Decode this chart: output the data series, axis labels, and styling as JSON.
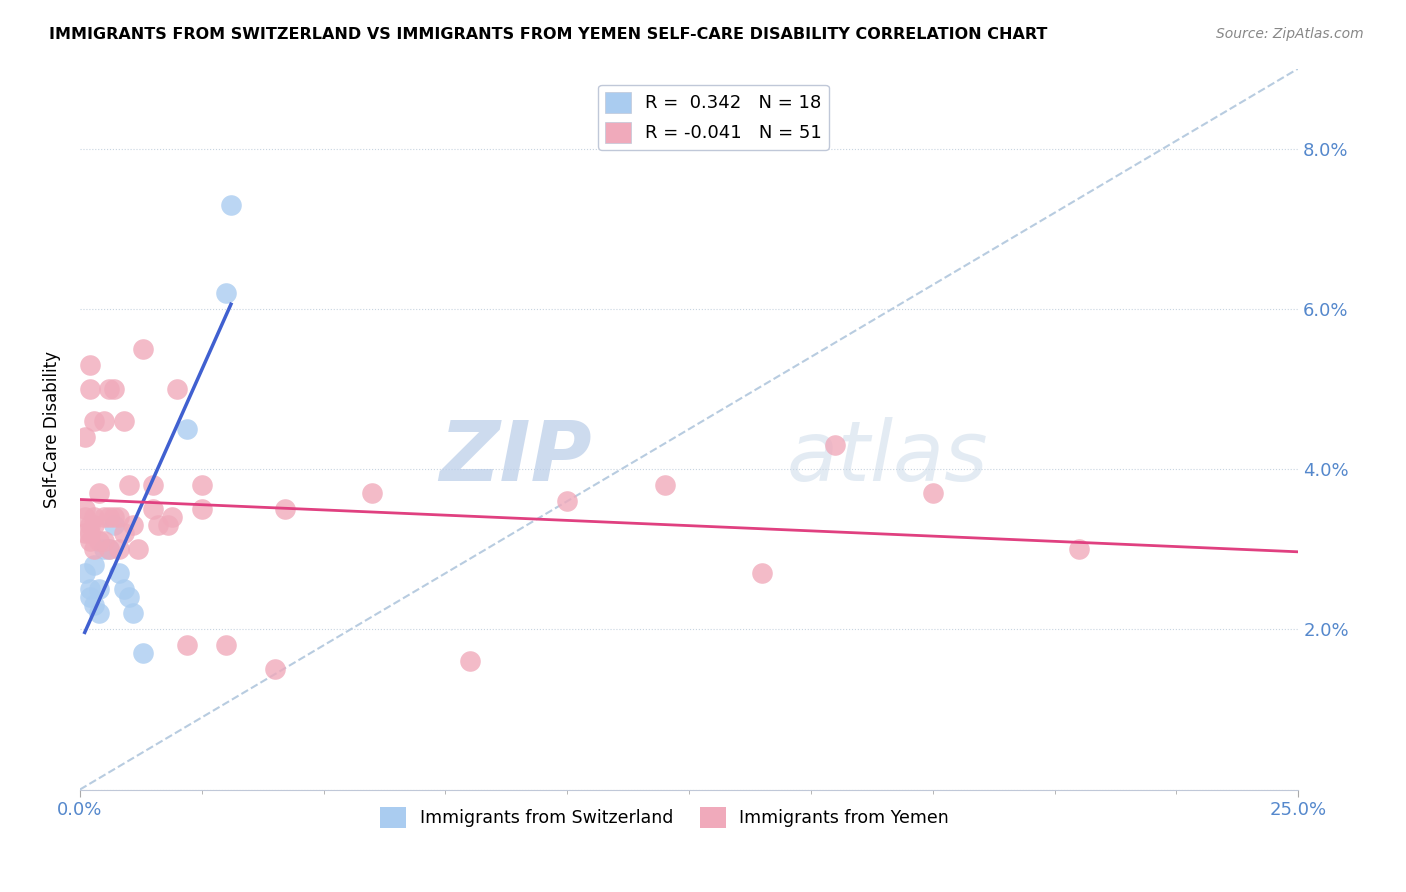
{
  "title": "IMMIGRANTS FROM SWITZERLAND VS IMMIGRANTS FROM YEMEN SELF-CARE DISABILITY CORRELATION CHART",
  "source": "Source: ZipAtlas.com",
  "ylabel": "Self-Care Disability",
  "xlim": [
    0.0,
    0.25
  ],
  "ylim": [
    0.0,
    0.09
  ],
  "yticks": [
    0.0,
    0.02,
    0.04,
    0.06,
    0.08
  ],
  "ytick_labels": [
    "",
    "2.0%",
    "4.0%",
    "6.0%",
    "8.0%"
  ],
  "xtick_labels_shown": [
    "0.0%",
    "25.0%"
  ],
  "xtick_positions_shown": [
    0.0,
    0.25
  ],
  "xtick_minor": [
    0.025,
    0.05,
    0.075,
    0.1,
    0.125,
    0.15,
    0.175,
    0.2,
    0.225
  ],
  "r_swiss": 0.342,
  "n_swiss": 18,
  "r_yemen": -0.041,
  "n_yemen": 51,
  "swiss_color": "#aaccf0",
  "yemen_color": "#f0aabb",
  "swiss_line_color": "#4060d0",
  "yemen_line_color": "#e04080",
  "dashed_line_color": "#b8cce0",
  "watermark_zip": "ZIP",
  "watermark_atlas": "atlas",
  "swiss_x": [
    0.001,
    0.002,
    0.002,
    0.003,
    0.003,
    0.004,
    0.004,
    0.005,
    0.006,
    0.007,
    0.008,
    0.009,
    0.01,
    0.011,
    0.013,
    0.022,
    0.03,
    0.031
  ],
  "swiss_y": [
    0.027,
    0.025,
    0.024,
    0.028,
    0.023,
    0.022,
    0.025,
    0.03,
    0.03,
    0.033,
    0.027,
    0.025,
    0.024,
    0.022,
    0.017,
    0.045,
    0.062,
    0.073
  ],
  "yemen_x": [
    0.001,
    0.001,
    0.001,
    0.001,
    0.002,
    0.002,
    0.002,
    0.002,
    0.002,
    0.003,
    0.003,
    0.003,
    0.003,
    0.004,
    0.004,
    0.005,
    0.005,
    0.005,
    0.006,
    0.006,
    0.006,
    0.007,
    0.007,
    0.008,
    0.008,
    0.009,
    0.009,
    0.01,
    0.011,
    0.012,
    0.013,
    0.015,
    0.015,
    0.016,
    0.018,
    0.019,
    0.02,
    0.022,
    0.025,
    0.025,
    0.03,
    0.04,
    0.042,
    0.06,
    0.08,
    0.1,
    0.12,
    0.14,
    0.155,
    0.175,
    0.205
  ],
  "yemen_y": [
    0.032,
    0.034,
    0.035,
    0.044,
    0.031,
    0.032,
    0.033,
    0.05,
    0.053,
    0.03,
    0.033,
    0.034,
    0.046,
    0.031,
    0.037,
    0.031,
    0.034,
    0.046,
    0.03,
    0.034,
    0.05,
    0.034,
    0.05,
    0.03,
    0.034,
    0.032,
    0.046,
    0.038,
    0.033,
    0.03,
    0.055,
    0.038,
    0.035,
    0.033,
    0.033,
    0.034,
    0.05,
    0.018,
    0.038,
    0.035,
    0.018,
    0.015,
    0.035,
    0.037,
    0.016,
    0.036,
    0.038,
    0.027,
    0.043,
    0.037,
    0.03
  ]
}
